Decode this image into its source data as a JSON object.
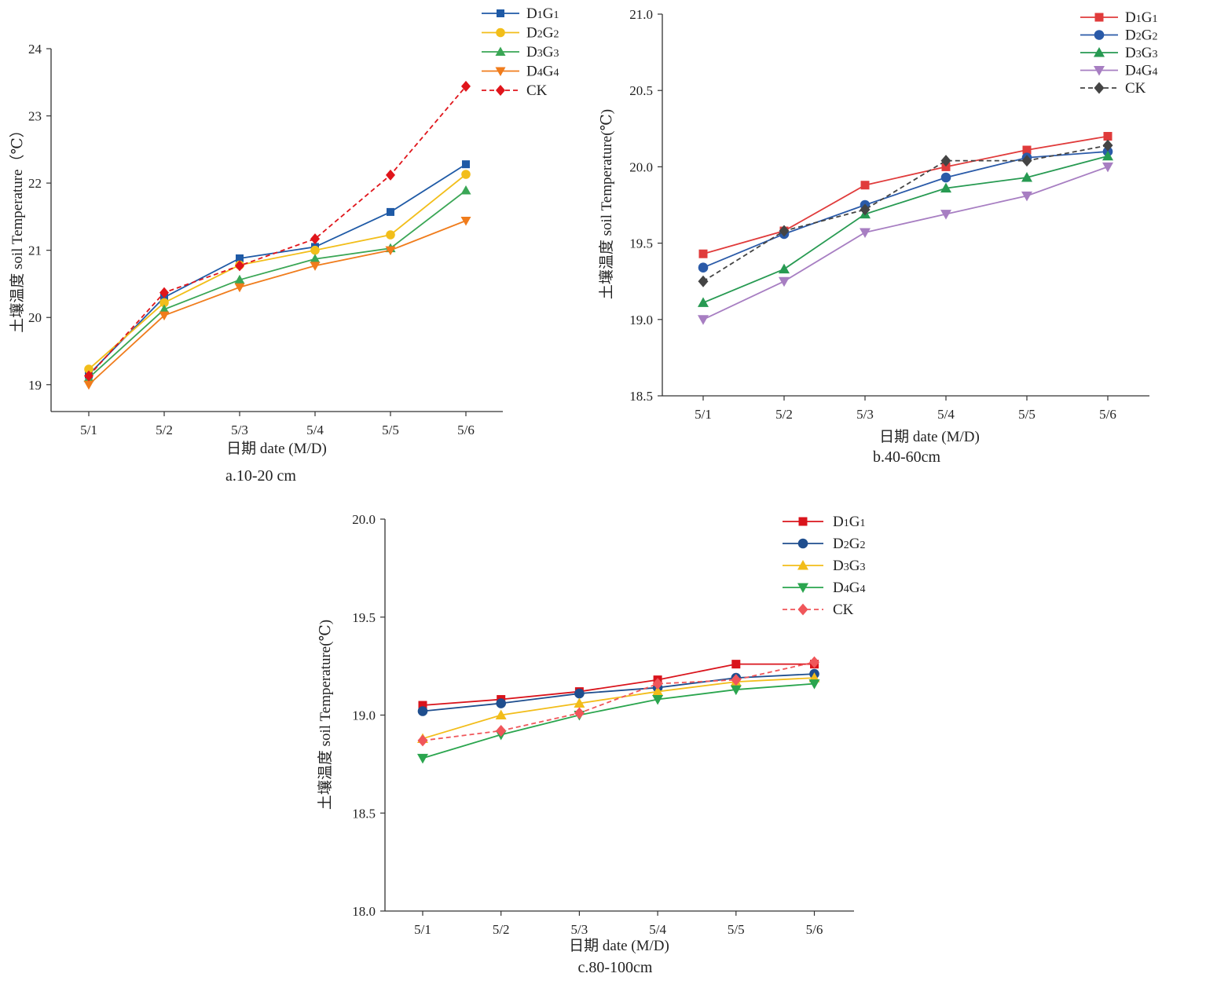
{
  "chart_data": [
    {
      "type": "line",
      "caption": "a.10-20 cm",
      "xlabel": "日期  date (M/D)",
      "ylabel": "土壤温度 soil Temperature（℃）",
      "categories": [
        "5/1",
        "5/2",
        "5/3",
        "5/4",
        "5/5",
        "5/6"
      ],
      "ylim": [
        18.6,
        24.0
      ],
      "yticks": [
        "19",
        "20",
        "21",
        "22",
        "23",
        "24"
      ],
      "ytick_values": [
        19,
        20,
        21,
        22,
        23,
        24
      ],
      "legend_position": "top-right",
      "series": [
        {
          "name": "D1G1",
          "values": [
            19.15,
            20.3,
            20.88,
            21.05,
            21.57,
            22.28
          ],
          "color": "#1f5aa6",
          "marker": "square",
          "dashed": false
        },
        {
          "name": "D2G2",
          "values": [
            19.23,
            20.22,
            20.78,
            21.0,
            21.23,
            22.13
          ],
          "color": "#f2be1a",
          "marker": "circle",
          "dashed": false
        },
        {
          "name": "D3G3",
          "values": [
            19.1,
            20.12,
            20.56,
            20.87,
            21.03,
            21.89
          ],
          "color": "#3aa655",
          "marker": "triangle-up",
          "dashed": false
        },
        {
          "name": "D4G4",
          "values": [
            19.0,
            20.03,
            20.45,
            20.77,
            21.0,
            21.44
          ],
          "color": "#f07c1c",
          "marker": "triangle-down",
          "dashed": false
        },
        {
          "name": "CK",
          "values": [
            19.13,
            20.37,
            20.77,
            21.17,
            22.12,
            23.44
          ],
          "color": "#e0151b",
          "marker": "diamond",
          "dashed": true
        }
      ]
    },
    {
      "type": "line",
      "caption": "b.40-60cm",
      "xlabel": "日期  date (M/D)",
      "ylabel": "土壤温度 soil Temperature(℃)",
      "categories": [
        "5/1",
        "5/2",
        "5/3",
        "5/4",
        "5/5",
        "5/6"
      ],
      "ylim": [
        18.5,
        21.0
      ],
      "yticks": [
        "18.5",
        "19.0",
        "19.5",
        "20.0",
        "20.5",
        "21.0"
      ],
      "ytick_values": [
        18.5,
        19.0,
        19.5,
        20.0,
        20.5,
        21.0
      ],
      "legend_position": "top-right",
      "series": [
        {
          "name": "D1G1",
          "values": [
            19.43,
            19.58,
            19.88,
            20.0,
            20.11,
            20.2
          ],
          "color": "#e03b3b",
          "marker": "square",
          "dashed": false
        },
        {
          "name": "D2G2",
          "values": [
            19.34,
            19.56,
            19.75,
            19.93,
            20.06,
            20.1
          ],
          "color": "#2a5aa8",
          "marker": "circle",
          "dashed": false
        },
        {
          "name": "D3G3",
          "values": [
            19.11,
            19.33,
            19.69,
            19.86,
            19.93,
            20.07
          ],
          "color": "#279a52",
          "marker": "triangle-up",
          "dashed": false
        },
        {
          "name": "D4G4",
          "values": [
            19.0,
            19.25,
            19.57,
            19.69,
            19.81,
            20.0
          ],
          "color": "#a77ec2",
          "marker": "triangle-down",
          "dashed": false
        },
        {
          "name": "CK",
          "values": [
            19.25,
            19.58,
            19.72,
            20.04,
            20.04,
            20.14
          ],
          "color": "#444444",
          "marker": "diamond",
          "dashed": true
        }
      ]
    },
    {
      "type": "line",
      "caption": "c.80-100cm",
      "xlabel": "日期  date (M/D)",
      "ylabel": "土壤温度 soil Temperature(℃)",
      "categories": [
        "5/1",
        "5/2",
        "5/3",
        "5/4",
        "5/5",
        "5/6"
      ],
      "ylim": [
        18.0,
        20.0
      ],
      "yticks": [
        "18.0",
        "18.5",
        "19.0",
        "19.5",
        "20.0"
      ],
      "ytick_values": [
        18.0,
        18.5,
        19.0,
        19.5,
        20.0
      ],
      "legend_position": "top-right",
      "series": [
        {
          "name": "D1G1",
          "values": [
            19.05,
            19.08,
            19.12,
            19.18,
            19.26,
            19.26
          ],
          "color": "#d9141c",
          "marker": "square",
          "dashed": false
        },
        {
          "name": "D2G2",
          "values": [
            19.02,
            19.06,
            19.11,
            19.14,
            19.19,
            19.21
          ],
          "color": "#1f4e8e",
          "marker": "circle",
          "dashed": false
        },
        {
          "name": "D3G3",
          "values": [
            18.88,
            19.0,
            19.06,
            19.12,
            19.17,
            19.19
          ],
          "color": "#f2bd1a",
          "marker": "triangle-up",
          "dashed": false
        },
        {
          "name": "D4G4",
          "values": [
            18.78,
            18.9,
            19.0,
            19.08,
            19.13,
            19.16
          ],
          "color": "#2aa54e",
          "marker": "triangle-down",
          "dashed": false
        },
        {
          "name": "CK",
          "values": [
            18.87,
            18.92,
            19.01,
            19.16,
            19.18,
            19.27
          ],
          "color": "#f0565a",
          "marker": "diamond",
          "dashed": true
        }
      ]
    }
  ]
}
